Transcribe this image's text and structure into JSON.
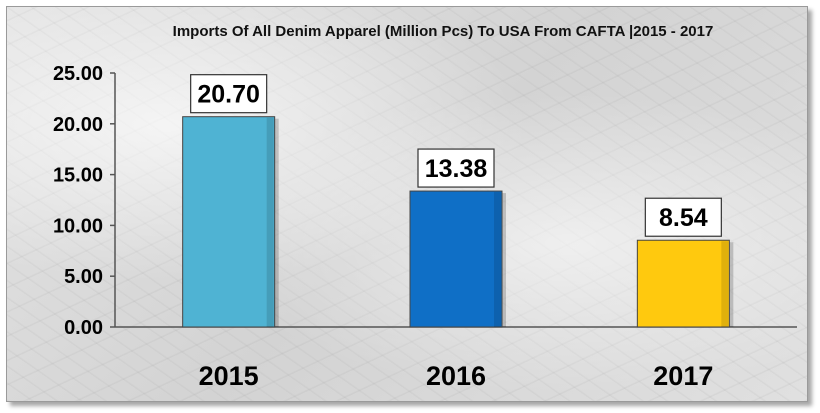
{
  "chart_data": {
    "type": "bar",
    "title": "Imports Of All Denim Apparel (Million Pcs) To USA From CAFTA  |2015 - 2017",
    "categories": [
      "2015",
      "2016",
      "2017"
    ],
    "values": [
      20.7,
      13.38,
      8.54
    ],
    "data_labels": [
      "20.70",
      "13.38",
      "8.54"
    ],
    "colors": [
      "#4fb3d3",
      "#0f6fc6",
      "#ffc90e"
    ],
    "yticks": [
      "0.00",
      "5.00",
      "10.00",
      "15.00",
      "20.00",
      "25.00"
    ],
    "ylim": [
      0,
      25
    ],
    "xlabel": "",
    "ylabel": "",
    "grid": false,
    "legend": "none"
  }
}
